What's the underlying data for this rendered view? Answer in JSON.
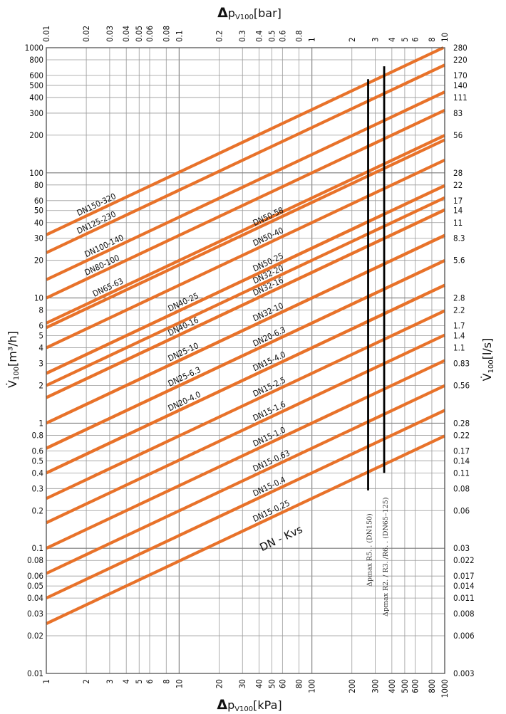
{
  "chart_data": {
    "type": "line",
    "title": "",
    "x_scale": "log",
    "y_scale": "log",
    "xlim_kPa": [
      1,
      1000
    ],
    "ylim_m3h": [
      0.01,
      1000
    ],
    "axes": {
      "top": {
        "prefix": "Δ",
        "main": "p",
        "sub": "V100",
        "unit": "[bar]",
        "tick_labels": [
          "0.01",
          "0.02",
          "0.03",
          "0.04",
          "0.05",
          "0.06",
          "0.08",
          "0.1",
          "0.2",
          "0.3",
          "0.4",
          "0.5",
          "0.6",
          "0.8",
          "1",
          "2",
          "3",
          "4",
          "5",
          "6",
          "8",
          "10"
        ],
        "tick_values_kpa": [
          1,
          2,
          3,
          4,
          5,
          6,
          8,
          10,
          20,
          30,
          40,
          50,
          60,
          80,
          100,
          200,
          300,
          400,
          500,
          600,
          800,
          1000
        ]
      },
      "bottom": {
        "prefix": "Δ",
        "main": "p",
        "sub": "V100",
        "unit": "[kPa]",
        "tick_labels": [
          "1",
          "2",
          "3",
          "4",
          "5",
          "6",
          "8",
          "10",
          "20",
          "30",
          "40",
          "50",
          "60",
          "80",
          "100",
          "200",
          "300",
          "400",
          "500",
          "600",
          "800",
          "1000"
        ],
        "tick_values": [
          1,
          2,
          3,
          4,
          5,
          6,
          8,
          10,
          20,
          30,
          40,
          50,
          60,
          80,
          100,
          200,
          300,
          400,
          500,
          600,
          800,
          1000
        ]
      },
      "left": {
        "main": "V̇",
        "sub": "100",
        "unit": "[m³/h]",
        "tick_labels": [
          "0.01",
          "0.02",
          "0.03",
          "0.04",
          "0.05",
          "0.06",
          "0.08",
          "0.1",
          "0.2",
          "0.3",
          "0.4",
          "0.5",
          "0.6",
          "0.8",
          "1",
          "2",
          "3",
          "4",
          "5",
          "6",
          "8",
          "10",
          "20",
          "30",
          "40",
          "50",
          "60",
          "80",
          "100",
          "200",
          "300",
          "400",
          "500",
          "600",
          "800",
          "1000"
        ],
        "tick_values": [
          0.01,
          0.02,
          0.03,
          0.04,
          0.05,
          0.06,
          0.08,
          0.1,
          0.2,
          0.3,
          0.4,
          0.5,
          0.6,
          0.8,
          1,
          2,
          3,
          4,
          5,
          6,
          8,
          10,
          20,
          30,
          40,
          50,
          60,
          80,
          100,
          200,
          300,
          400,
          500,
          600,
          800,
          1000
        ]
      },
      "right": {
        "main": "V̇",
        "sub": "100",
        "unit": "[l/s]",
        "tick_labels": [
          "0.003",
          "0.006",
          "0.008",
          "0.011",
          "0.014",
          "0.017",
          "0.022",
          "0.03",
          "0.06",
          "0.08",
          "0.11",
          "0.14",
          "0.17",
          "0.22",
          "0.28",
          "0.56",
          "0.83",
          "1.1",
          "1.4",
          "1.7",
          "2.2",
          "2.8",
          "5.6",
          "8.3",
          "11",
          "14",
          "17",
          "22",
          "28",
          "56",
          "83",
          "111",
          "140",
          "170",
          "220",
          "280"
        ],
        "tick_values_m3h": [
          0.01,
          0.02,
          0.03,
          0.04,
          0.05,
          0.06,
          0.08,
          0.1,
          0.2,
          0.3,
          0.4,
          0.5,
          0.6,
          0.8,
          1,
          2,
          3,
          4,
          5,
          6,
          8,
          10,
          20,
          30,
          40,
          50,
          60,
          80,
          100,
          200,
          300,
          400,
          500,
          600,
          800,
          1000
        ]
      }
    },
    "series": [
      {
        "name": "DN150-320",
        "kvs": 320,
        "label_at_kpa": 1.75
      },
      {
        "name": "DN125-230",
        "kvs": 230,
        "label_at_kpa": 1.75
      },
      {
        "name": "DN100-140",
        "kvs": 140,
        "label_at_kpa": 2.0
      },
      {
        "name": "DN80-100",
        "kvs": 100,
        "label_at_kpa": 2.0
      },
      {
        "name": "DN65-63",
        "kvs": 63,
        "label_at_kpa": 2.3
      },
      {
        "name": "DN50-58",
        "kvs": 58,
        "label_at_kpa": 37
      },
      {
        "name": "DN50-40",
        "kvs": 40,
        "label_at_kpa": 37
      },
      {
        "name": "DN50-25",
        "kvs": 25,
        "label_at_kpa": 37
      },
      {
        "name": "DN40-25",
        "kvs": 25,
        "label_at_kpa": 8.5
      },
      {
        "name": "DN32-20",
        "kvs": 20,
        "label_at_kpa": 37
      },
      {
        "name": "DN32-16",
        "kvs": 16,
        "label_at_kpa": 37
      },
      {
        "name": "DN40-16",
        "kvs": 16,
        "label_at_kpa": 8.5
      },
      {
        "name": "DN32-10",
        "kvs": 10,
        "label_at_kpa": 37
      },
      {
        "name": "DN25-10",
        "kvs": 10,
        "label_at_kpa": 8.5
      },
      {
        "name": "DN20-6.3",
        "kvs": 6.3,
        "label_at_kpa": 37
      },
      {
        "name": "DN25-6.3",
        "kvs": 6.3,
        "label_at_kpa": 8.5
      },
      {
        "name": "DN15-4.0",
        "kvs": 4.0,
        "label_at_kpa": 37
      },
      {
        "name": "DN20-4.0",
        "kvs": 4.0,
        "label_at_kpa": 8.5
      },
      {
        "name": "DN15-2.5",
        "kvs": 2.5,
        "label_at_kpa": 37
      },
      {
        "name": "DN15-1.6",
        "kvs": 1.6,
        "label_at_kpa": 37
      },
      {
        "name": "DN15-1.0",
        "kvs": 1.0,
        "label_at_kpa": 37
      },
      {
        "name": "DN15-0.63",
        "kvs": 0.63,
        "label_at_kpa": 37
      },
      {
        "name": "DN15-0.4",
        "kvs": 0.4,
        "label_at_kpa": 37
      },
      {
        "name": "DN15-0.25",
        "kvs": 0.25,
        "label_at_kpa": 37
      }
    ],
    "limit_lines": [
      {
        "label": "Δpmax  R5. .   (DN150)",
        "dp_kpa": 265,
        "v_from": 0.29,
        "v_to": 560
      },
      {
        "label": "Δpmax  R2. / R3. /R6. .   (DN65–125)",
        "dp_kpa": 350,
        "v_from": 0.4,
        "v_to": 710
      }
    ],
    "legend_label": "DN - Kvs",
    "legend_at": {
      "dp_kpa": 42,
      "v": 0.105
    },
    "grid": true,
    "colors": {
      "series": "#E8722A",
      "limit": "#000000",
      "grid": "#9a9a9a"
    }
  }
}
